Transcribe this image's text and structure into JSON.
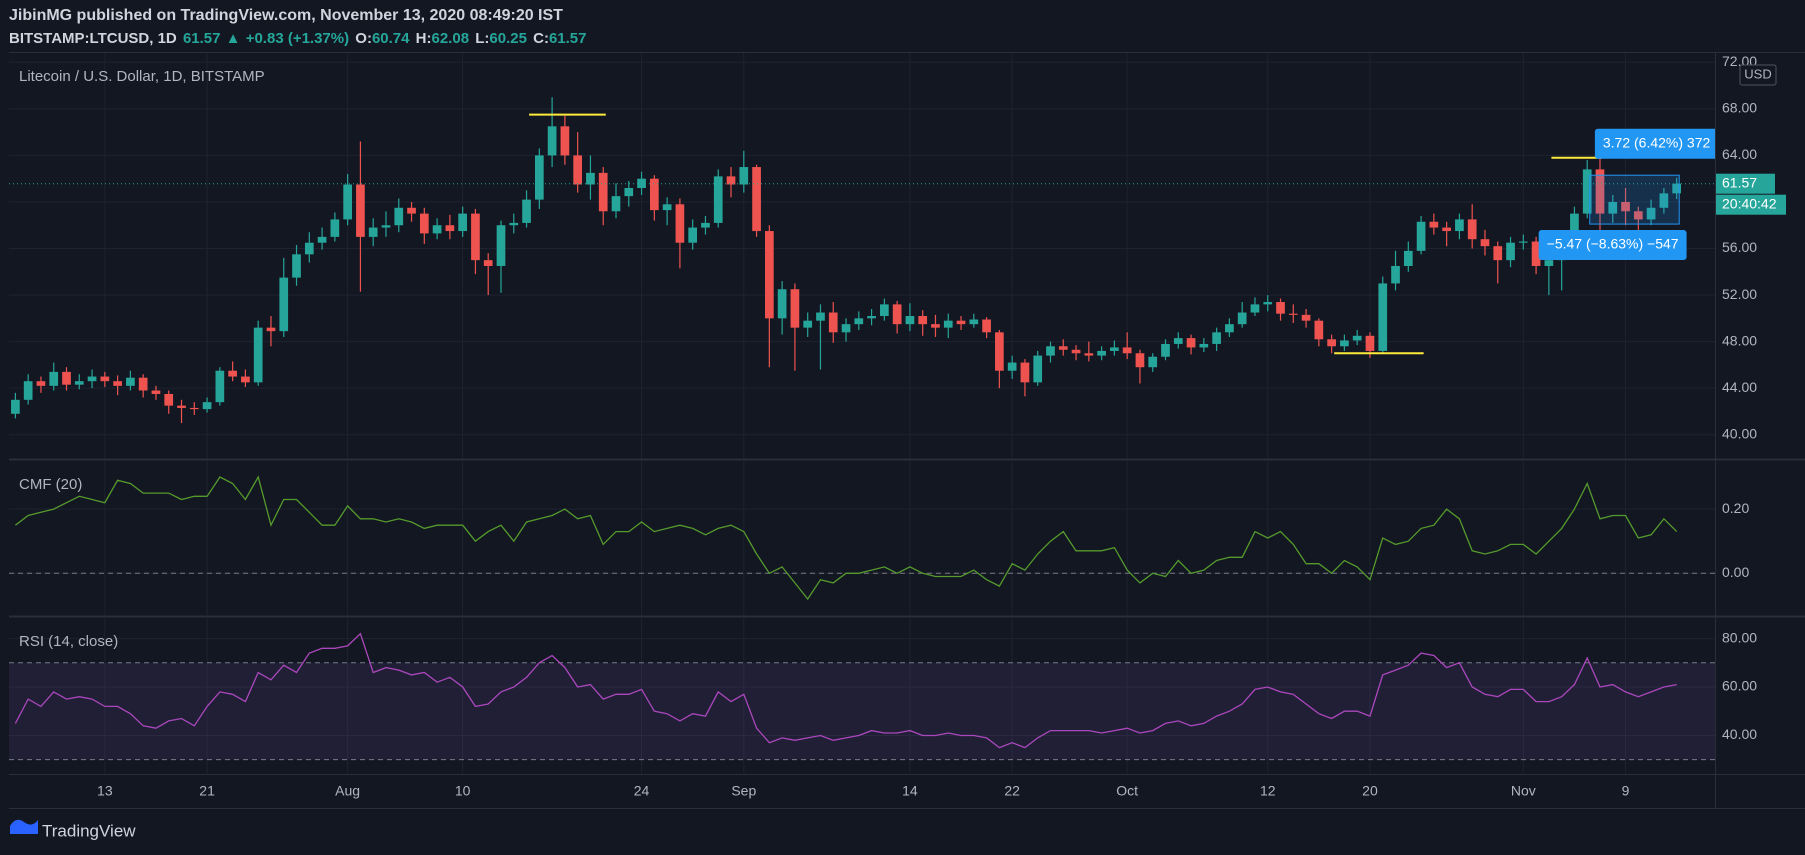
{
  "header": {
    "byline": "JibinMG published on TradingView.com, November 13, 2020 08:49:20 IST",
    "symbol": "BITSTAMP:LTCUSD, 1D",
    "arrow": "▲",
    "change": "+0.83 (+1.37%)",
    "keys": [
      "O:",
      "H:",
      "L:",
      "C:"
    ],
    "brand": "TradingView"
  },
  "chart_data": [
    {
      "type": "candlestick",
      "title": "Litecoin / U.S. Dollar, 1D, BITSTAMP",
      "currency": "USD",
      "countdown": "20:40:42",
      "up_color": "#26a69a",
      "down_color": "#ef5350",
      "grid": true,
      "open": [
        41.8,
        43.0,
        44.6,
        44.2,
        45.4,
        44.3,
        44.6,
        45.0,
        44.6,
        44.2,
        44.9,
        43.8,
        43.5,
        42.5,
        42.3,
        42.2,
        42.8,
        45.5,
        45.0,
        44.5,
        49.2,
        48.9,
        53.5,
        55.5,
        56.5,
        57.0,
        58.5,
        61.5,
        57.0,
        57.8,
        58.0,
        59.5,
        59.0,
        57.3,
        58.0,
        57.5,
        59.0,
        55.0,
        54.5,
        58.0,
        58.2,
        60.2,
        64.0,
        66.5,
        64.0,
        61.5,
        62.5,
        59.2,
        60.5,
        61.2,
        62.0,
        59.3,
        59.8,
        56.5,
        57.8,
        58.2,
        62.2,
        61.5,
        63.0,
        57.5,
        50.0,
        52.5,
        49.2,
        49.8,
        50.5,
        48.8,
        49.5,
        50.0,
        50.2,
        51.2,
        49.5,
        50.2,
        49.5,
        49.2,
        49.8,
        49.5,
        49.9,
        48.8,
        45.5,
        46.2,
        44.5,
        46.8,
        47.6,
        47.3,
        47.0,
        46.8,
        47.2,
        47.5,
        47.0,
        45.8,
        46.7,
        47.8,
        48.3,
        47.5,
        47.8,
        48.8,
        49.5,
        50.5,
        51.2,
        51.4,
        50.4,
        50.3,
        49.8,
        48.2,
        47.6,
        48.1,
        48.5,
        47.2,
        53.0,
        54.5,
        55.8,
        58.3,
        57.8,
        57.5,
        58.5,
        56.8,
        56.2,
        55.0,
        56.5,
        56.6,
        54.5,
        55.0,
        55.8,
        59.0,
        62.8,
        59.0,
        60.0,
        59.2,
        58.5,
        59.5,
        60.74
      ],
      "high": [
        43.6,
        45.2,
        45.0,
        46.2,
        45.8,
        45.2,
        45.6,
        45.4,
        45.1,
        45.5,
        45.2,
        44.2,
        43.8,
        43.0,
        42.8,
        43.2,
        45.8,
        46.3,
        45.6,
        49.8,
        50.2,
        55.2,
        56.3,
        57.4,
        57.8,
        59.1,
        62.4,
        65.2,
        58.6,
        59.2,
        60.3,
        60.0,
        59.5,
        58.6,
        58.9,
        59.6,
        59.4,
        55.6,
        58.4,
        59.0,
        61.0,
        64.6,
        69.0,
        67.4,
        66.0,
        64.0,
        63.0,
        61.6,
        61.8,
        62.6,
        62.3,
        60.4,
        60.3,
        58.5,
        58.8,
        62.8,
        63.0,
        64.4,
        63.2,
        58.0,
        53.2,
        53.0,
        50.5,
        51.2,
        51.4,
        50.0,
        50.6,
        50.8,
        51.7,
        51.5,
        51.3,
        50.7,
        50.3,
        50.4,
        50.2,
        50.4,
        50.1,
        49.0,
        46.8,
        46.5,
        47.2,
        48.0,
        48.2,
        47.7,
        48.0,
        47.6,
        48.1,
        48.8,
        47.3,
        47.0,
        48.2,
        48.8,
        48.6,
        48.3,
        49.2,
        50.0,
        51.4,
        51.8,
        52.0,
        51.7,
        51.2,
        50.8,
        50.0,
        48.6,
        48.6,
        49.0,
        48.8,
        53.6,
        55.8,
        56.6,
        58.8,
        59.0,
        58.3,
        59.0,
        59.8,
        57.6,
        56.6,
        57.0,
        57.2,
        57.0,
        55.6,
        56.4,
        59.6,
        63.6,
        63.8,
        60.6,
        61.2,
        59.6,
        60.2,
        61.2,
        62.08
      ],
      "low": [
        41.4,
        42.6,
        43.6,
        43.8,
        43.8,
        43.9,
        44.0,
        44.1,
        43.4,
        43.8,
        43.2,
        43.0,
        41.8,
        41.0,
        41.7,
        41.9,
        42.5,
        44.6,
        44.1,
        44.2,
        47.6,
        48.4,
        52.8,
        54.8,
        55.9,
        56.6,
        58.0,
        52.3,
        56.2,
        57.0,
        57.4,
        58.3,
        56.4,
        56.8,
        56.8,
        57.0,
        53.8,
        52.0,
        52.2,
        57.3,
        57.8,
        59.4,
        63.0,
        63.2,
        60.8,
        60.2,
        58.0,
        58.6,
        59.6,
        60.6,
        58.4,
        58.0,
        54.3,
        55.9,
        57.2,
        57.8,
        60.4,
        60.8,
        57.0,
        45.8,
        48.6,
        45.5,
        48.4,
        45.6,
        47.9,
        48.0,
        49.0,
        49.4,
        49.8,
        48.7,
        48.9,
        48.5,
        48.4,
        48.3,
        49.0,
        49.2,
        48.3,
        44.0,
        44.8,
        43.3,
        44.2,
        46.2,
        46.8,
        46.4,
        46.3,
        46.4,
        46.8,
        46.5,
        44.4,
        45.4,
        46.4,
        47.4,
        46.9,
        47.1,
        47.2,
        48.4,
        49.2,
        50.2,
        50.6,
        49.8,
        49.6,
        49.2,
        47.6,
        47.0,
        47.2,
        47.7,
        46.6,
        47.0,
        52.4,
        54.0,
        55.5,
        57.2,
        56.2,
        56.8,
        56.0,
        55.4,
        53.0,
        54.4,
        55.9,
        53.8,
        52.0,
        52.4,
        55.4,
        58.6,
        56.8,
        58.2,
        58.0,
        57.6,
        58.0,
        59.0,
        60.25
      ],
      "close": [
        43.0,
        44.6,
        44.2,
        45.4,
        44.3,
        44.6,
        45.0,
        44.6,
        44.2,
        44.9,
        43.8,
        43.5,
        42.5,
        42.3,
        42.2,
        42.8,
        45.5,
        45.0,
        44.5,
        49.2,
        48.9,
        53.5,
        55.5,
        56.5,
        57.0,
        58.5,
        61.5,
        57.0,
        57.8,
        58.0,
        59.5,
        59.0,
        57.3,
        58.0,
        57.5,
        59.0,
        55.0,
        54.5,
        58.0,
        58.2,
        60.2,
        64.0,
        66.5,
        64.0,
        61.5,
        62.5,
        59.2,
        60.5,
        61.2,
        62.0,
        59.3,
        59.8,
        56.5,
        57.8,
        58.2,
        62.2,
        61.5,
        63.0,
        57.5,
        50.0,
        52.5,
        49.2,
        49.8,
        50.5,
        48.8,
        49.5,
        50.0,
        50.2,
        51.2,
        49.5,
        50.2,
        49.5,
        49.2,
        49.8,
        49.5,
        49.9,
        48.8,
        45.5,
        46.2,
        44.5,
        46.8,
        47.6,
        47.3,
        47.0,
        46.8,
        47.2,
        47.5,
        47.0,
        45.8,
        46.7,
        47.8,
        48.3,
        47.5,
        47.8,
        48.8,
        49.5,
        50.5,
        51.2,
        51.4,
        50.4,
        50.3,
        49.8,
        48.2,
        47.6,
        48.1,
        48.5,
        47.2,
        53.0,
        54.5,
        55.8,
        58.3,
        57.8,
        57.5,
        58.5,
        56.8,
        56.2,
        55.0,
        56.5,
        56.6,
        54.5,
        55.0,
        55.8,
        59.0,
        62.8,
        59.0,
        60.0,
        59.2,
        58.5,
        59.5,
        60.74,
        61.57
      ],
      "xlim": [
        -0.5,
        133
      ],
      "xticks": [
        {
          "value": 7,
          "label": "13"
        },
        {
          "value": 15,
          "label": "21"
        },
        {
          "value": 26,
          "label": "Aug"
        },
        {
          "value": 35,
          "label": "10"
        },
        {
          "value": 49,
          "label": "24"
        },
        {
          "value": 57,
          "label": "Sep"
        },
        {
          "value": 70,
          "label": "14"
        },
        {
          "value": 78,
          "label": "22"
        },
        {
          "value": 87,
          "label": "Oct"
        },
        {
          "value": 98,
          "label": "12"
        },
        {
          "value": 106,
          "label": "20"
        },
        {
          "value": 118,
          "label": "Nov"
        },
        {
          "value": 126,
          "label": "9"
        }
      ],
      "ylim": [
        38,
        72.8
      ],
      "yticks": [
        {
          "value": 40,
          "label": "40.00"
        },
        {
          "value": 44,
          "label": "44.00"
        },
        {
          "value": 48,
          "label": "48.00"
        },
        {
          "value": 52,
          "label": "52.00"
        },
        {
          "value": 56,
          "label": "56.00"
        },
        {
          "value": 60,
          "label": "60.00"
        },
        {
          "value": 64,
          "label": "64.00"
        },
        {
          "value": 68,
          "label": "68.00"
        },
        {
          "value": 72,
          "label": "72.00"
        }
      ],
      "levels": [
        {
          "value": 67.5,
          "from": 40.2,
          "to": 46.2,
          "color": "#ffeb3b"
        },
        {
          "value": 47.0,
          "from": 103.2,
          "to": 110.2,
          "color": "#ffeb3b"
        },
        {
          "value": 63.8,
          "from": 120.2,
          "to": 124.2,
          "color": "#ffeb3b"
        }
      ],
      "measure_box": {
        "x0": 123.2,
        "x1": 130.2,
        "y0": 58.1,
        "y1": 62.3,
        "color": "#2196f3"
      },
      "measures": [
        {
          "text": "3.72 (6.42%) 372",
          "x": 123.6,
          "y": 65.0
        },
        {
          "text": "−5.47 (−8.63%) −547",
          "x": 119.2,
          "y": 56.3
        }
      ]
    },
    {
      "type": "line",
      "title": "CMF (20)",
      "color": "#559a2c",
      "grid": true,
      "values": [
        0.15,
        0.18,
        0.19,
        0.2,
        0.22,
        0.24,
        0.23,
        0.22,
        0.29,
        0.28,
        0.25,
        0.25,
        0.25,
        0.23,
        0.24,
        0.24,
        0.3,
        0.28,
        0.23,
        0.3,
        0.15,
        0.23,
        0.23,
        0.19,
        0.15,
        0.15,
        0.21,
        0.17,
        0.17,
        0.16,
        0.17,
        0.16,
        0.14,
        0.15,
        0.15,
        0.15,
        0.1,
        0.13,
        0.15,
        0.1,
        0.16,
        0.17,
        0.18,
        0.2,
        0.17,
        0.18,
        0.09,
        0.13,
        0.13,
        0.16,
        0.13,
        0.14,
        0.15,
        0.14,
        0.12,
        0.14,
        0.15,
        0.13,
        0.06,
        0.0,
        0.02,
        -0.03,
        -0.08,
        -0.02,
        -0.03,
        0.0,
        0.0,
        0.01,
        0.02,
        0.0,
        0.02,
        0.0,
        -0.01,
        -0.01,
        -0.01,
        0.01,
        -0.02,
        -0.04,
        0.03,
        0.01,
        0.06,
        0.1,
        0.13,
        0.07,
        0.07,
        0.07,
        0.08,
        0.01,
        -0.03,
        0.0,
        -0.01,
        0.04,
        0.0,
        0.01,
        0.04,
        0.05,
        0.05,
        0.13,
        0.11,
        0.13,
        0.09,
        0.03,
        0.03,
        0.0,
        0.04,
        0.02,
        -0.02,
        0.11,
        0.09,
        0.1,
        0.14,
        0.15,
        0.2,
        0.17,
        0.07,
        0.06,
        0.07,
        0.09,
        0.09,
        0.06,
        0.1,
        0.14,
        0.2,
        0.28,
        0.17,
        0.18,
        0.18,
        0.11,
        0.12,
        0.17,
        0.13
      ],
      "ylim": [
        -0.13,
        0.35
      ],
      "yticks": [
        {
          "value": 0,
          "label": "0.00"
        },
        {
          "value": 0.2,
          "label": "0.20"
        }
      ],
      "reference_lines": [
        0
      ]
    },
    {
      "type": "line",
      "title": "RSI (14, close)",
      "color": "#ab47bc",
      "grid": true,
      "values": [
        45,
        55,
        52,
        58,
        55,
        56,
        55,
        52,
        52,
        49,
        44,
        43,
        46,
        47,
        44,
        52,
        58,
        57,
        54,
        66,
        63,
        69,
        66,
        74,
        76,
        76,
        77,
        82,
        66,
        68,
        67,
        65,
        66,
        62,
        64,
        60,
        52,
        53,
        58,
        60,
        64,
        70,
        73,
        68,
        60,
        61,
        55,
        57,
        57,
        59,
        50,
        49,
        46,
        49,
        48,
        58,
        54,
        57,
        43,
        37,
        39,
        38,
        39,
        40,
        38,
        39,
        40,
        42,
        41,
        41,
        42,
        40,
        40,
        41,
        40,
        40,
        39,
        35,
        37,
        35,
        39,
        42,
        42,
        42,
        42,
        41,
        42,
        43,
        41,
        42,
        45,
        46,
        44,
        45,
        48,
        50,
        53,
        59,
        60,
        58,
        57,
        53,
        49,
        47,
        50,
        50,
        48,
        65,
        67,
        69,
        74,
        73,
        68,
        70,
        60,
        57,
        56,
        59,
        59,
        54,
        54,
        56,
        61,
        72,
        60,
        61,
        58,
        56,
        58,
        60,
        61
      ],
      "ylim": [
        24.5,
        88.5
      ],
      "yticks": [
        {
          "value": 40,
          "label": "40.00"
        },
        {
          "value": 60,
          "label": "60.00"
        },
        {
          "value": 80,
          "label": "80.00"
        }
      ],
      "band": [
        30,
        70
      ],
      "band_color": "#7e57c2"
    }
  ]
}
